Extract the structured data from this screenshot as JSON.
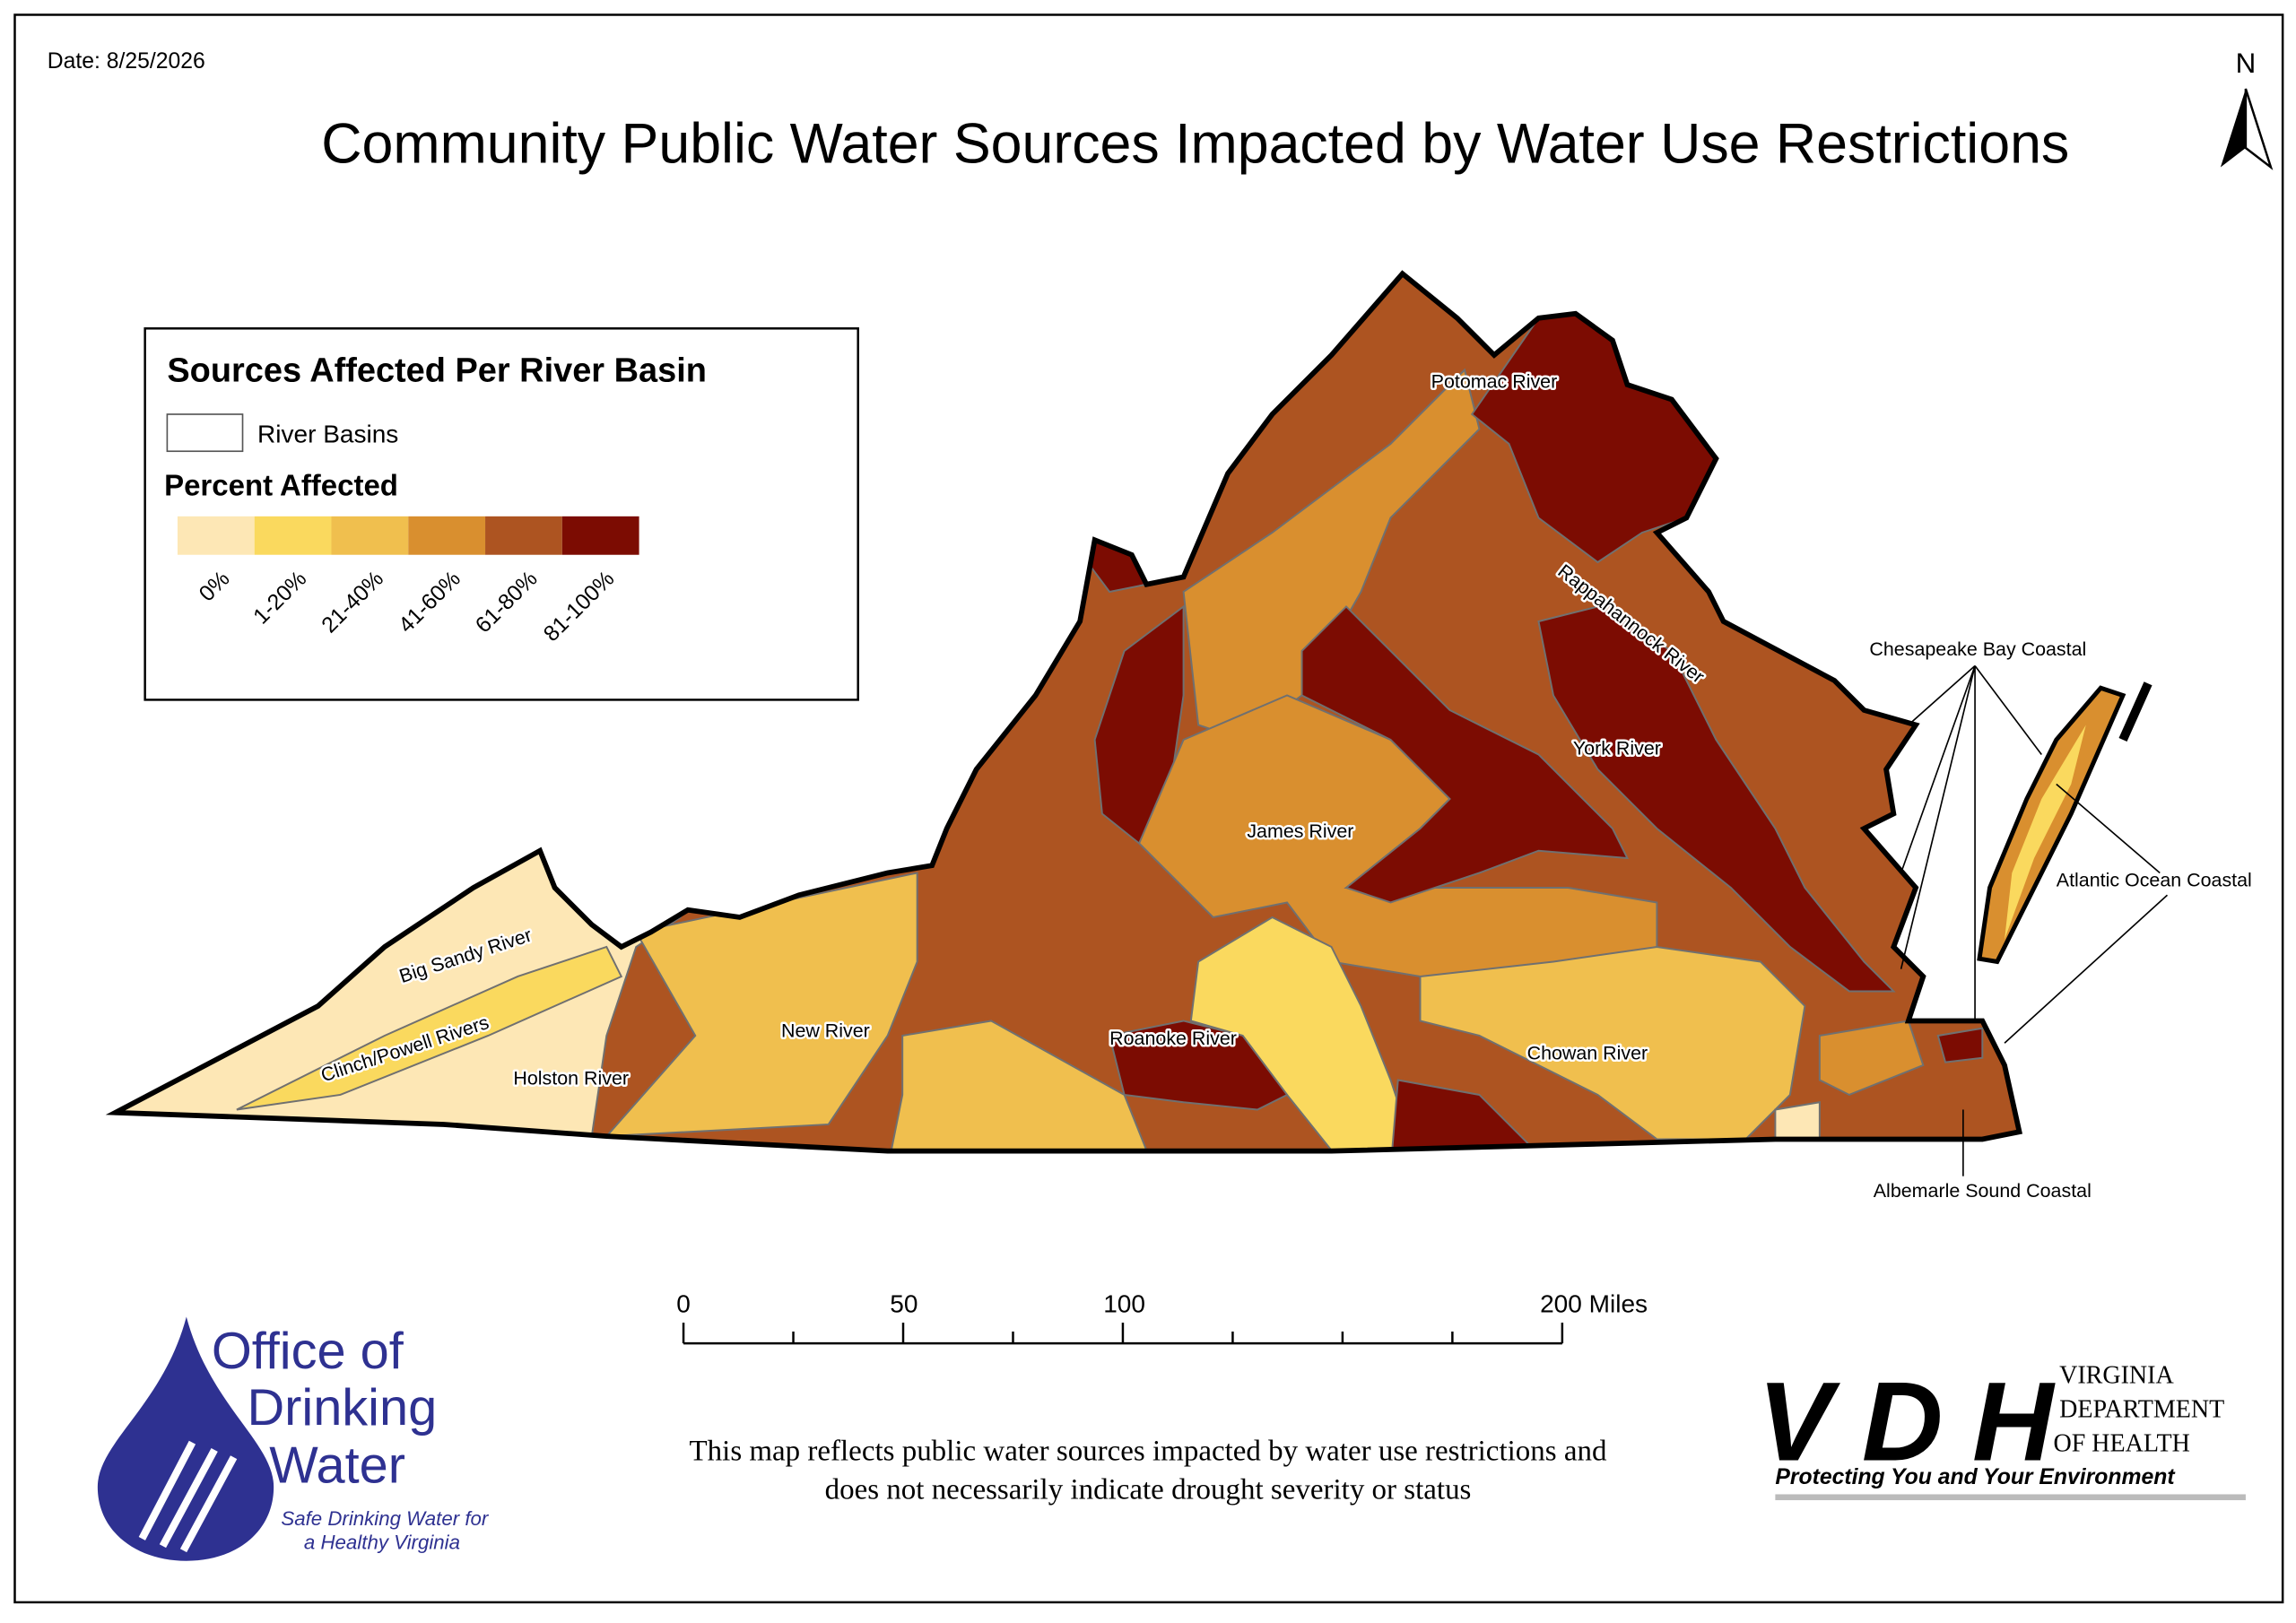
{
  "header": {
    "date": "Date: 8/25/2026",
    "title": "Community Public Water Sources Impacted by Water Use Restrictions",
    "north": "N"
  },
  "legend": {
    "title": "Sources Affected Per River Basin",
    "basins_label": "River Basins",
    "percent_title": "Percent Affected",
    "classes": [
      {
        "label": "0%",
        "color": "#fde7b5"
      },
      {
        "label": "1-20%",
        "color": "#fad95e"
      },
      {
        "label": "21-40%",
        "color": "#f0bf4e"
      },
      {
        "label": "41-60%",
        "color": "#d98f2f"
      },
      {
        "label": "61-80%",
        "color": "#ad5421"
      },
      {
        "label": "81-100%",
        "color": "#7c0c02"
      }
    ]
  },
  "map": {
    "basins": [
      "Potomac River",
      "Rappahannock River",
      "York River",
      "James River",
      "Big Sandy River",
      "Clinch/Powell Rivers",
      "Holston River",
      "New River",
      "Roanoke River",
      "Chowan River"
    ],
    "coastal": [
      "Chesapeake Bay Coastal",
      "Atlantic Ocean Coastal",
      "Albemarle Sound Coastal"
    ]
  },
  "scale_bar": {
    "labels": [
      "0",
      "50",
      "100",
      "200 Miles"
    ]
  },
  "note": [
    "This map reflects public water sources impacted by water use restrictions and",
    "does not necessarily indicate drought severity or status"
  ],
  "logos": {
    "odw": {
      "lines": [
        "Office of",
        "Drinking",
        "Water"
      ],
      "tagline": [
        "Safe Drinking Water for",
        "a Healthy Virginia"
      ]
    },
    "vdh": {
      "mark": "VDH",
      "name": [
        "VIRGINIA",
        "DEPARTMENT",
        "OF HEALTH"
      ],
      "tagline": "Protecting You and Your Environment"
    }
  }
}
